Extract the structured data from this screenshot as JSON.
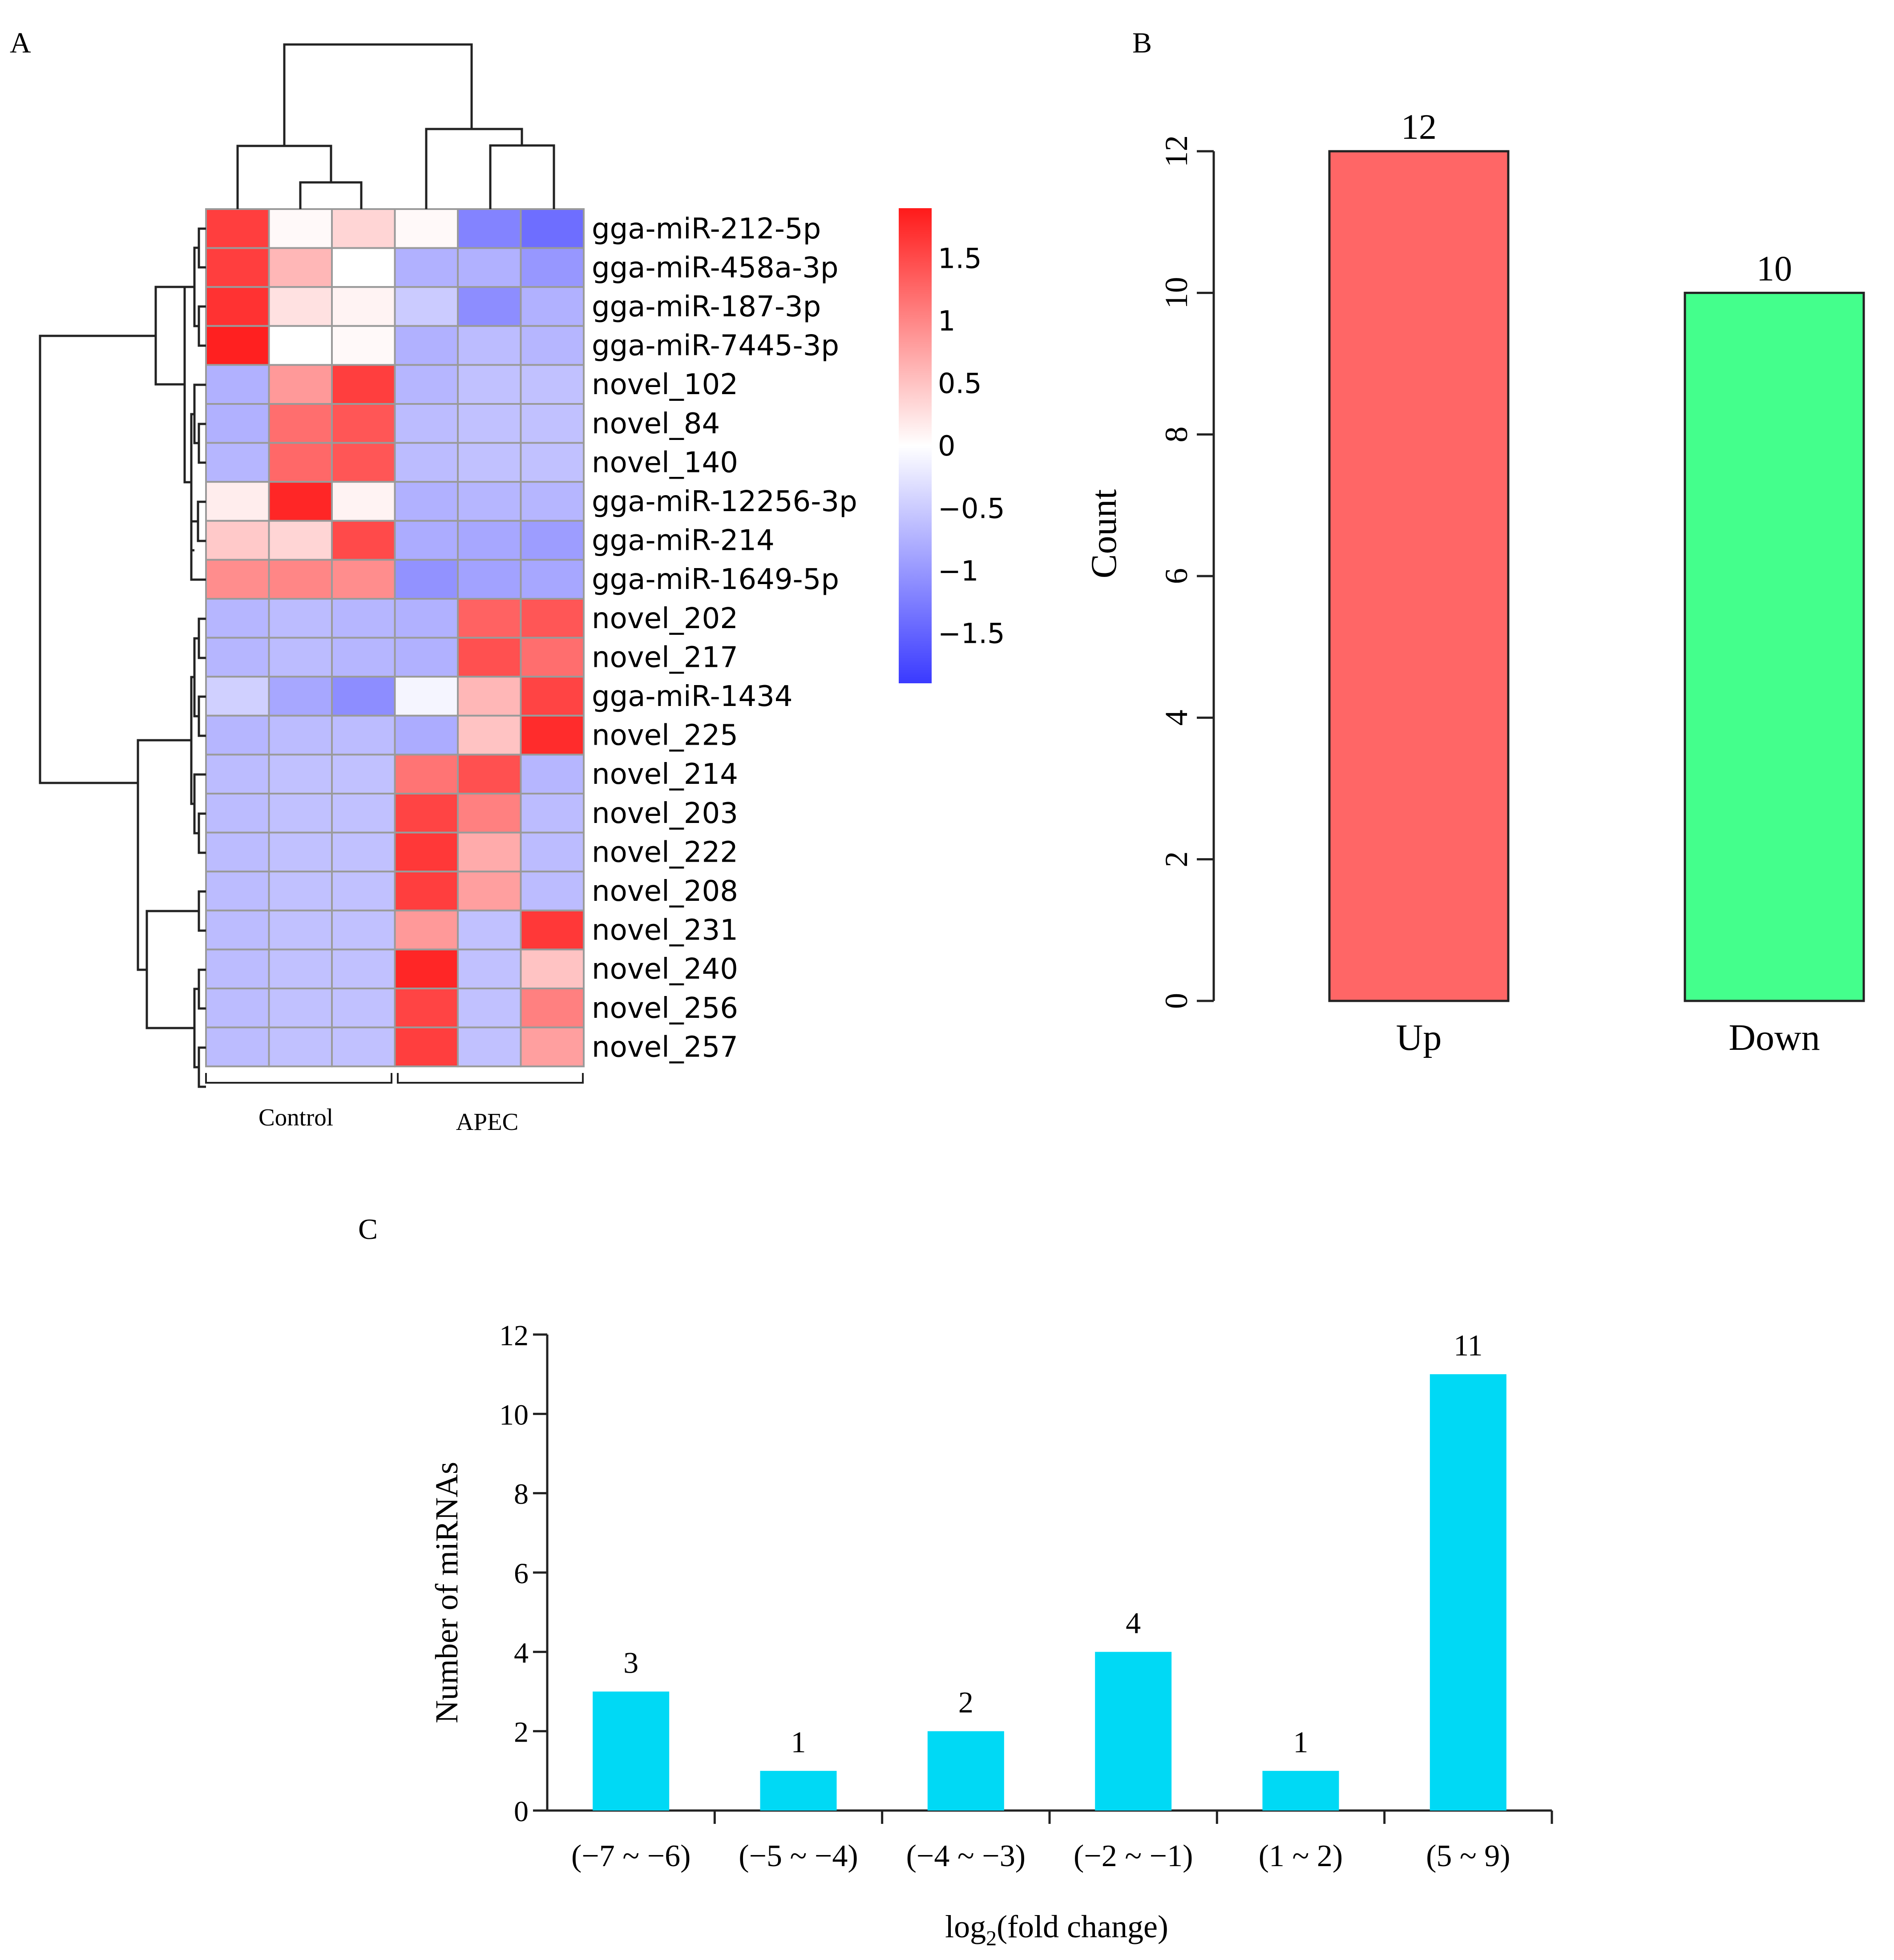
{
  "panels": {
    "a": "A",
    "b": "B",
    "c": "C"
  },
  "colors": {
    "low": "#3a3aff",
    "mid": "#ffffff",
    "high": "#ff1a1a",
    "heat_border": "#9a9a9a",
    "bar_up": "#ff6666",
    "bar_down": "#44ff8c",
    "bar_c": "#00d9f5",
    "axis": "#222222"
  },
  "chart_data": [
    {
      "type": "heatmap",
      "panel": "A",
      "groups": [
        "Control",
        "APEC"
      ],
      "columns": 6,
      "rows": [
        "gga-miR-212-5p",
        "gga-miR-458a-3p",
        "gga-miR-187-3p",
        "gga-miR-7445-3p",
        "novel_102",
        "novel_84",
        "novel_140",
        "gga-miR-12256-3p",
        "gga-miR-214",
        "gga-miR-1649-5p",
        "novel_202",
        "novel_217",
        "gga-miR-1434",
        "novel_225",
        "novel_214",
        "novel_203",
        "novel_222",
        "novel_208",
        "novel_231",
        "novel_240",
        "novel_256",
        "novel_257"
      ],
      "values": [
        [
          1.6,
          0.05,
          0.35,
          0.05,
          -1.2,
          -1.4
        ],
        [
          1.6,
          0.6,
          0.0,
          -0.75,
          -0.75,
          -1.0
        ],
        [
          1.7,
          0.25,
          0.1,
          -0.5,
          -1.1,
          -0.75
        ],
        [
          1.85,
          0.0,
          0.05,
          -0.75,
          -0.65,
          -0.7
        ],
        [
          -0.75,
          0.85,
          1.6,
          -0.7,
          -0.6,
          -0.6
        ],
        [
          -0.75,
          1.2,
          1.4,
          -0.65,
          -0.6,
          -0.6
        ],
        [
          -0.7,
          1.25,
          1.4,
          -0.65,
          -0.6,
          -0.6
        ],
        [
          0.15,
          1.8,
          0.1,
          -0.75,
          -0.7,
          -0.7
        ],
        [
          0.45,
          0.35,
          1.5,
          -0.8,
          -0.85,
          -0.95
        ],
        [
          0.95,
          1.0,
          0.95,
          -1.05,
          -0.9,
          -0.85
        ],
        [
          -0.7,
          -0.65,
          -0.7,
          -0.75,
          1.3,
          1.4
        ],
        [
          -0.7,
          -0.65,
          -0.7,
          -0.75,
          1.45,
          1.2
        ],
        [
          -0.45,
          -0.85,
          -1.1,
          -0.1,
          0.6,
          1.55
        ],
        [
          -0.7,
          -0.65,
          -0.65,
          -0.8,
          0.5,
          1.75
        ],
        [
          -0.65,
          -0.6,
          -0.6,
          1.15,
          1.45,
          -0.7
        ],
        [
          -0.65,
          -0.6,
          -0.6,
          1.55,
          1.05,
          -0.65
        ],
        [
          -0.65,
          -0.6,
          -0.6,
          1.65,
          0.7,
          -0.65
        ],
        [
          -0.65,
          -0.6,
          -0.6,
          1.6,
          0.8,
          -0.65
        ],
        [
          -0.65,
          -0.6,
          -0.6,
          0.85,
          -0.6,
          1.65
        ],
        [
          -0.65,
          -0.6,
          -0.6,
          1.8,
          -0.6,
          0.5
        ],
        [
          -0.65,
          -0.6,
          -0.6,
          1.55,
          -0.6,
          1.05
        ],
        [
          -0.65,
          -0.6,
          -0.6,
          1.6,
          -0.6,
          0.8
        ]
      ],
      "legend": {
        "range": [
          -1.9,
          1.9
        ],
        "ticks": [
          1.5,
          1,
          0.5,
          0,
          -0.5,
          -1,
          -1.5
        ],
        "tick_labels": [
          "1.5",
          "1",
          "0.5",
          "0",
          "−0.5",
          "−1",
          "−1.5"
        ]
      },
      "row_dendrogram": "yes",
      "column_dendrogram": "yes"
    },
    {
      "type": "bar",
      "panel": "B",
      "categories": [
        "Up",
        "Down"
      ],
      "values": [
        12,
        10
      ],
      "value_labels": [
        "12",
        "10"
      ],
      "ylabel": "Count",
      "ylim": [
        0,
        12
      ],
      "yticks": [
        0,
        2,
        4,
        6,
        8,
        10,
        12
      ],
      "ytick_labels": [
        "0",
        "2",
        "4",
        "6",
        "8",
        "10",
        "12"
      ]
    },
    {
      "type": "bar",
      "panel": "C",
      "categories": [
        "(−7 ~ −6)",
        "(−5 ~ −4)",
        "(−4 ~ −3)",
        "(−2 ~ −1)",
        "(1 ~ 2)",
        "(5 ~ 9)"
      ],
      "values": [
        3,
        1,
        2,
        4,
        1,
        11
      ],
      "value_labels": [
        "3",
        "1",
        "2",
        "4",
        "1",
        "11"
      ],
      "xlabel_main": "log",
      "xlabel_sub": "2",
      "xlabel_rest": "(fold change)",
      "ylabel": "Number of miRNAs",
      "ylim": [
        0,
        12
      ],
      "yticks": [
        0,
        2,
        4,
        6,
        8,
        10,
        12
      ],
      "ytick_labels": [
        "0",
        "2",
        "4",
        "6",
        "8",
        "10",
        "12"
      ]
    }
  ]
}
